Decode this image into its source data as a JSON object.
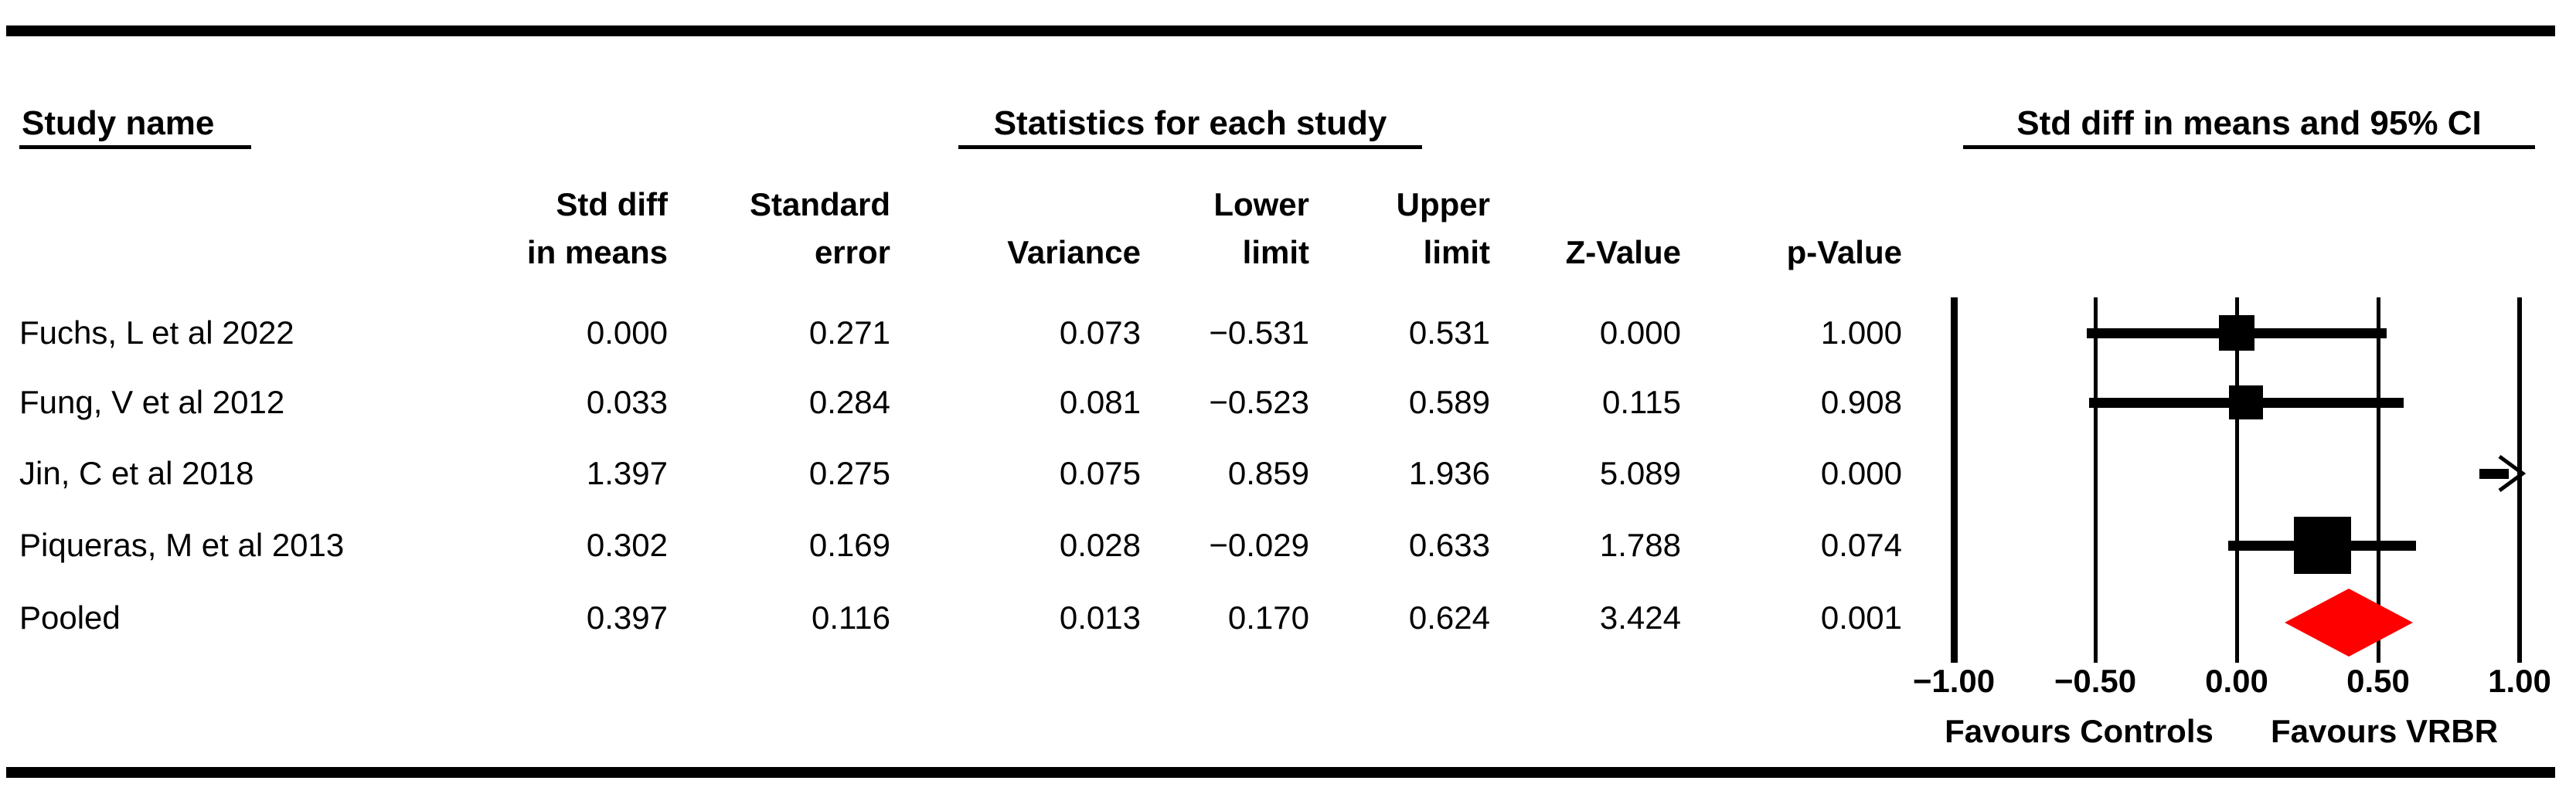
{
  "headers": {
    "study_name": "Study name",
    "statistics": "Statistics for each study",
    "plot": "Std diff in means and 95% CI"
  },
  "columns": [
    {
      "line1": "Std diff",
      "line2": "in means"
    },
    {
      "line1": "Standard",
      "line2": "error"
    },
    {
      "line1": "",
      "line2": "Variance"
    },
    {
      "line1": "Lower",
      "line2": "limit"
    },
    {
      "line1": "Upper",
      "line2": "limit"
    },
    {
      "line1": "",
      "line2": "Z-Value"
    },
    {
      "line1": "",
      "line2": "p-Value"
    }
  ],
  "axis": {
    "tick_labels": [
      "−1.00",
      "−0.50",
      "0.00",
      "0.50",
      "1.00"
    ],
    "favours_left": "Favours Controls",
    "favours_right": "Favours VRBR"
  },
  "chart_data": {
    "type": "forest",
    "title": "Std diff in means and 95% CI",
    "x_range": [
      -1.0,
      1.0
    ],
    "x_ticks": [
      -1.0,
      -0.5,
      0.0,
      0.5,
      1.0
    ],
    "x_tick_labels": [
      "−1.00",
      "−0.50",
      "0.00",
      "0.50",
      "1.00"
    ],
    "favours_left": "Favours Controls",
    "favours_right": "Favours VRBR",
    "grid": true,
    "studies": [
      {
        "name": "Fuchs, L et al 2022",
        "std_diff": 0.0,
        "se": 0.271,
        "variance": 0.073,
        "lower": -0.531,
        "upper": 0.531,
        "z": 0.0,
        "p": 1.0,
        "marker": "square",
        "off_scale_right": false
      },
      {
        "name": "Fung, V et al 2012",
        "std_diff": 0.033,
        "se": 0.284,
        "variance": 0.081,
        "lower": -0.523,
        "upper": 0.589,
        "z": 0.115,
        "p": 0.908,
        "marker": "square",
        "off_scale_right": false
      },
      {
        "name": "Jin, C et al 2018",
        "std_diff": 1.397,
        "se": 0.275,
        "variance": 0.075,
        "lower": 0.859,
        "upper": 1.936,
        "z": 5.089,
        "p": 0.0,
        "marker": "square",
        "off_scale_right": true
      },
      {
        "name": "Piqueras, M et al 2013",
        "std_diff": 0.302,
        "se": 0.169,
        "variance": 0.028,
        "lower": -0.029,
        "upper": 0.633,
        "z": 1.788,
        "p": 0.074,
        "marker": "square",
        "off_scale_right": false
      },
      {
        "name": "Pooled",
        "std_diff": 0.397,
        "se": 0.116,
        "variance": 0.013,
        "lower": 0.17,
        "upper": 0.624,
        "z": 3.424,
        "p": 0.001,
        "marker": "diamond",
        "off_scale_right": false
      }
    ],
    "colors": {
      "marker": "#000000",
      "pooled_diamond": "#FF0000",
      "grid": "#000000"
    }
  }
}
